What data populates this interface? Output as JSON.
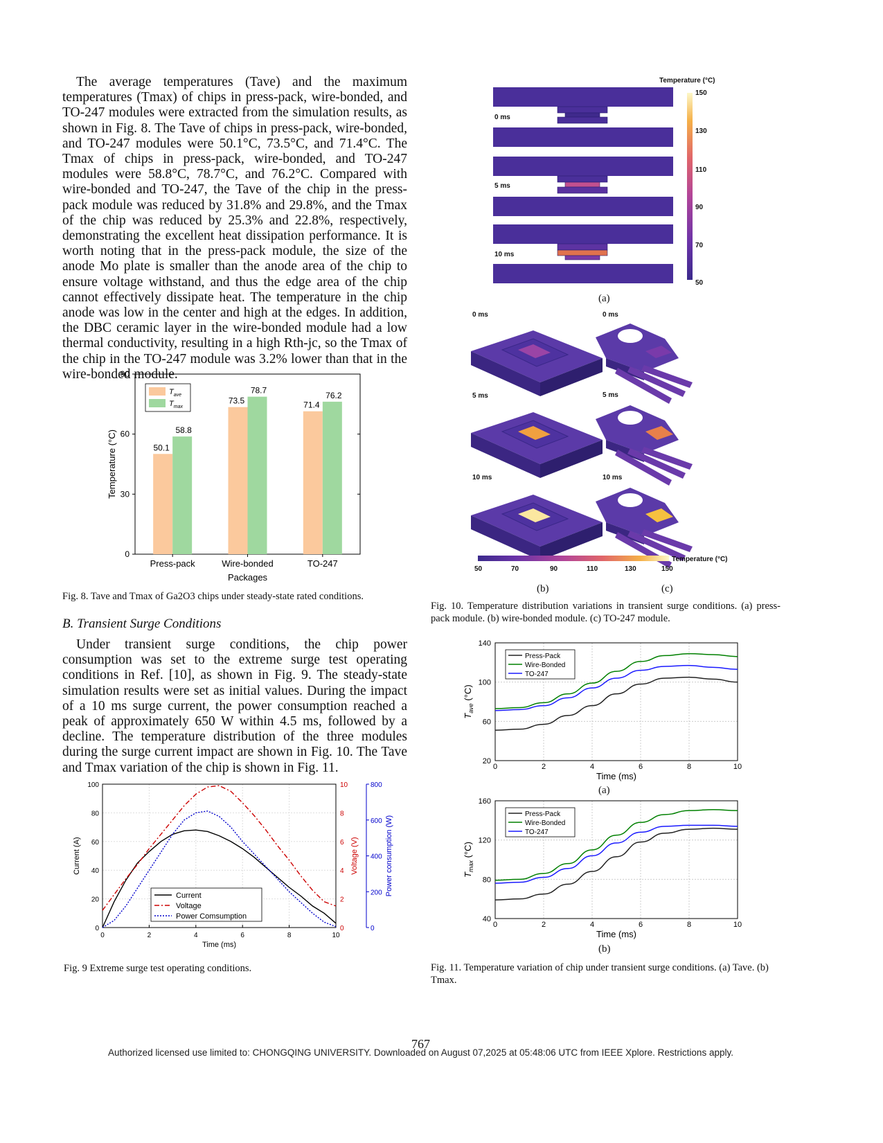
{
  "page": {
    "page_number": "767",
    "footer": "Authorized licensed use limited to: CHONGQING UNIVERSITY. Downloaded on August 07,2025 at 05:48:06 UTC from IEEE Xplore.  Restrictions apply."
  },
  "left": {
    "para1": "The average temperatures (Tave) and the maximum temperatures (Tmax) of chips in press-pack, wire-bonded, and TO-247 modules were extracted from the simulation results, as shown in Fig. 8. The Tave of chips in press-pack, wire-bonded, and TO-247 modules were 50.1°C, 73.5°C, and 71.4°C. The Tmax of chips in press-pack, wire-bonded, and TO-247 modules were 58.8°C, 78.7°C, and 76.2°C. Compared with wire-bonded and TO-247, the Tave of the chip in the press-pack module was reduced by 31.8% and 29.8%, and the Tmax of the chip was reduced by 25.3% and 22.8%, respectively, demonstrating the excellent heat dissipation performance. It is worth noting that in the press-pack module, the size of the anode Mo plate is smaller than the anode area of the chip to ensure voltage withstand, and thus the edge area of the chip cannot effectively dissipate heat. The temperature in the chip anode was low in the center and high at the edges. In addition, the DBC ceramic layer in the wire-bonded module had a low thermal conductivity, resulting in a high Rth-jc, so the Tmax of the chip in the TO-247 module was 3.2% lower than that in the wire-bonded module.",
    "fig8_caption": "Fig. 8.   Tave and Tmax of Ga2O3 chips under steady-state rated conditions.",
    "section_heading": "B.  Transient Surge Conditions",
    "para2": "Under transient surge conditions, the chip power consumption was set to the extreme surge test operating conditions in Ref. [10], as shown in Fig. 9. The steady-state simulation results were set as initial values. During the impact of a 10 ms surge current, the power consumption reached a peak of approximately 650 W within 4.5 ms, followed by a decline. The temperature distribution of the three modules during the surge current impact are shown in Fig. 10. The Tave and Tmax variation of the chip is shown in Fig. 11.",
    "fig9_caption": "Fig. 9 Extreme surge test operating conditions."
  },
  "right": {
    "fig10": {
      "panel_a_title": "Temperature (°C)",
      "panel_a_times": [
        "0 ms",
        "5 ms",
        "10 ms"
      ],
      "colorbar_ticks": [
        "150",
        "130",
        "110",
        "90",
        "70",
        "50"
      ],
      "label_a": "(a)",
      "panel_bc_times": [
        "0 ms",
        "5 ms",
        "10 ms"
      ],
      "colorbar_h_title": "Temperature (°C)",
      "colorbar_h_ticks": [
        "50",
        "70",
        "90",
        "110",
        "130",
        "150"
      ],
      "label_b": "(b)",
      "label_c": "(c)",
      "palette": [
        "#3b2a8c",
        "#5a2fa0",
        "#8c3ba8",
        "#c24d95",
        "#e8724f",
        "#f5b63d",
        "#fcf7b8"
      ]
    },
    "fig10_caption": "Fig. 10. Temperature distribution variations in transient surge conditions. (a) press-pack module. (b) wire-bonded module. (c) TO-247 module.",
    "fig11_label_a": "(a)",
    "fig11_label_b": "(b)",
    "fig11_caption": "Fig. 11. Temperature variation of chip under transient surge conditions. (a) Tave. (b) Tmax."
  },
  "chart_data": [
    {
      "id": "fig8",
      "type": "bar",
      "categories": [
        "Press-pack",
        "Wire-bonded",
        "TO-247"
      ],
      "series": [
        {
          "name": "Tave",
          "values": [
            50.1,
            73.5,
            71.4
          ],
          "color": "#fbc99d"
        },
        {
          "name": "Tmax",
          "values": [
            58.8,
            78.7,
            76.2
          ],
          "color": "#9fd89f"
        }
      ],
      "xlabel": "Packages",
      "ylabel": "Temperature (°C)",
      "ylim": [
        0,
        90
      ],
      "yticks": [
        0,
        30,
        60,
        90
      ],
      "legend": "top-left"
    },
    {
      "id": "fig9",
      "type": "line",
      "xlabel": "Time (ms)",
      "xlim": [
        0,
        10
      ],
      "xticks": [
        0,
        2,
        4,
        6,
        8,
        10
      ],
      "axes": [
        {
          "label": "Current (A)",
          "side": "left",
          "ylim": [
            0,
            100
          ],
          "ticks": [
            0,
            20,
            40,
            60,
            80,
            100
          ],
          "color": "#000000"
        },
        {
          "label": "Voltage (V)",
          "side": "right",
          "ylim": [
            0,
            10
          ],
          "ticks": [
            0,
            2,
            4,
            6,
            8,
            10
          ],
          "color": "#cc0000"
        },
        {
          "label": "Power consumption (W)",
          "side": "right-outer",
          "ylim": [
            0,
            800
          ],
          "ticks": [
            0,
            200,
            400,
            600,
            800
          ],
          "color": "#0000cc"
        }
      ],
      "series": [
        {
          "name": "Current",
          "axis": 0,
          "style": "solid",
          "color": "#000000",
          "x": [
            0,
            0.5,
            1,
            1.5,
            2,
            2.5,
            3,
            3.5,
            4,
            4.5,
            5,
            5.5,
            6,
            6.5,
            7,
            7.5,
            8,
            8.5,
            9,
            9.5,
            10
          ],
          "y": [
            0,
            18,
            33,
            45,
            53,
            60,
            65,
            67.5,
            68,
            67,
            64,
            60,
            55,
            49,
            42,
            35,
            28,
            22,
            15,
            10,
            3
          ]
        },
        {
          "name": "Voltage",
          "axis": 1,
          "style": "dashdot",
          "color": "#cc0000",
          "x": [
            0,
            0.5,
            1,
            1.5,
            2,
            2.5,
            3,
            3.5,
            4,
            4.5,
            5,
            5.5,
            6,
            6.5,
            7,
            7.5,
            8,
            8.5,
            9,
            9.5,
            10
          ],
          "y": [
            1.2,
            2.3,
            3.4,
            4.4,
            5.5,
            6.5,
            7.5,
            8.5,
            9.3,
            9.8,
            9.9,
            9.5,
            8.7,
            7.8,
            6.8,
            5.7,
            4.7,
            3.6,
            2.6,
            1.8,
            1.5
          ]
        },
        {
          "name": "Power Comsumption",
          "axis": 2,
          "style": "dotted",
          "color": "#0000cc",
          "x": [
            0,
            0.5,
            1,
            1.5,
            2,
            2.5,
            3,
            3.5,
            4,
            4.5,
            5,
            5.5,
            6,
            6.5,
            7,
            7.5,
            8,
            8.5,
            9,
            9.5,
            10
          ],
          "y": [
            0,
            40,
            120,
            220,
            320,
            420,
            520,
            600,
            640,
            650,
            620,
            560,
            480,
            410,
            340,
            270,
            200,
            140,
            80,
            30,
            5
          ]
        }
      ],
      "legend": "bottom-center"
    },
    {
      "id": "fig11a",
      "type": "line",
      "xlabel": "Time (ms)",
      "ylabel": "Tave (°C)",
      "xlim": [
        0,
        10
      ],
      "ylim": [
        20,
        140
      ],
      "xticks": [
        0,
        2,
        4,
        6,
        8,
        10
      ],
      "yticks": [
        20,
        60,
        100,
        140
      ],
      "series": [
        {
          "name": "Press-Pack",
          "color": "#222222",
          "x": [
            0,
            1,
            2,
            3,
            4,
            5,
            6,
            7,
            8,
            9,
            10
          ],
          "y": [
            51,
            52,
            57,
            66,
            76,
            88,
            98,
            104,
            105,
            103,
            100
          ]
        },
        {
          "name": "Wire-Bonded",
          "color": "#008000",
          "x": [
            0,
            1,
            2,
            3,
            4,
            5,
            6,
            7,
            8,
            9,
            10
          ],
          "y": [
            73,
            74,
            79,
            88,
            99,
            111,
            121,
            127,
            129,
            128,
            126
          ]
        },
        {
          "name": "TO-247",
          "color": "#1a1aff",
          "x": [
            0,
            1,
            2,
            3,
            4,
            5,
            6,
            7,
            8,
            9,
            10
          ],
          "y": [
            71,
            72,
            76,
            84,
            94,
            104,
            112,
            116,
            117,
            115,
            113
          ]
        }
      ],
      "legend": "top-left"
    },
    {
      "id": "fig11b",
      "type": "line",
      "xlabel": "Time (ms)",
      "ylabel": "Tmax (°C)",
      "xlim": [
        0,
        10
      ],
      "ylim": [
        40,
        160
      ],
      "xticks": [
        0,
        2,
        4,
        6,
        8,
        10
      ],
      "yticks": [
        40,
        80,
        120,
        160
      ],
      "series": [
        {
          "name": "Press-Pack",
          "color": "#222222",
          "x": [
            0,
            1,
            2,
            3,
            4,
            5,
            6,
            7,
            8,
            9,
            10
          ],
          "y": [
            59,
            60,
            65,
            75,
            88,
            103,
            118,
            127,
            131,
            132,
            131
          ]
        },
        {
          "name": "Wire-Bonded",
          "color": "#008000",
          "x": [
            0,
            1,
            2,
            3,
            4,
            5,
            6,
            7,
            8,
            9,
            10
          ],
          "y": [
            79,
            80,
            86,
            96,
            110,
            125,
            138,
            146,
            150,
            151,
            150
          ]
        },
        {
          "name": "TO-247",
          "color": "#1a1aff",
          "x": [
            0,
            1,
            2,
            3,
            4,
            5,
            6,
            7,
            8,
            9,
            10
          ],
          "y": [
            76,
            77,
            82,
            91,
            104,
            117,
            128,
            134,
            135,
            135,
            134
          ]
        }
      ],
      "legend": "top-left"
    }
  ]
}
